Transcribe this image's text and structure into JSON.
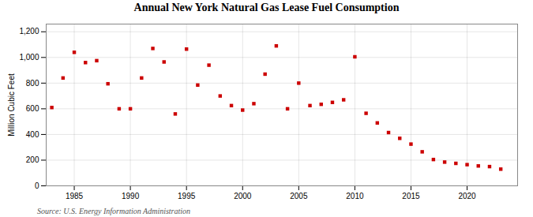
{
  "chart_data": {
    "type": "scatter",
    "title": "Annual New York Natural Gas Lease Fuel Consumption",
    "ylabel": "Million Cubic Feet",
    "source": "Source: U.S. Energy Information Administration",
    "x": [
      1983,
      1984,
      1985,
      1986,
      1987,
      1988,
      1989,
      1990,
      1991,
      1992,
      1993,
      1994,
      1995,
      1996,
      1997,
      1998,
      1999,
      2000,
      2001,
      2002,
      2003,
      2004,
      2005,
      2006,
      2007,
      2008,
      2009,
      2010,
      2011,
      2012,
      2013,
      2014,
      2015,
      2016,
      2017,
      2018,
      2019,
      2020,
      2021,
      2022,
      2023
    ],
    "values": [
      610,
      840,
      1040,
      960,
      975,
      795,
      600,
      600,
      840,
      1070,
      965,
      560,
      1065,
      785,
      940,
      700,
      625,
      590,
      640,
      870,
      1090,
      600,
      800,
      625,
      635,
      650,
      670,
      1005,
      565,
      490,
      415,
      370,
      325,
      265,
      205,
      185,
      175,
      165,
      155,
      150,
      130
    ],
    "color": "#cc0000",
    "marker": "square",
    "xlim": [
      1982.5,
      2024.5
    ],
    "ylim": [
      0,
      1260
    ],
    "xticks": [
      1985,
      1990,
      1995,
      2000,
      2005,
      2010,
      2015,
      2020
    ],
    "yticks": [
      0,
      200,
      400,
      600,
      800,
      {
        "value": 1000,
        "label": "1,000"
      },
      {
        "value": 1200,
        "label": "1,200"
      }
    ],
    "grid": true
  }
}
